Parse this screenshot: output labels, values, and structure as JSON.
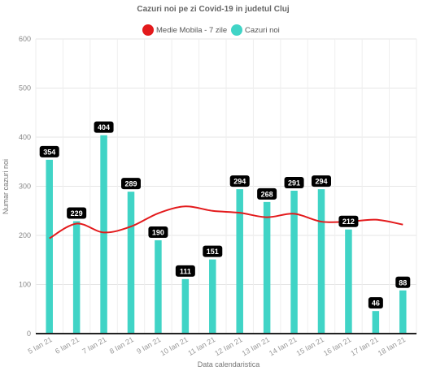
{
  "chart_data": {
    "type": "bar",
    "title": "Cazuri noi pe zi Covid-19 in judetul Cluj",
    "xlabel": "Data calendaristica",
    "ylabel": "Numar cazuri noi",
    "ylim": [
      0,
      600
    ],
    "yticks": [
      "0",
      "100",
      "200",
      "300",
      "400",
      "500",
      "600"
    ],
    "grid": true,
    "legend_position": "top-center",
    "categories": [
      "5 Ian 21",
      "6 Ian 21",
      "7 Ian 21",
      "8 Ian 21",
      "9 Ian 21",
      "10 Ian 21",
      "11 Ian 21",
      "12 Ian 21",
      "13 Ian 21",
      "14 Ian 21",
      "15 Ian 21",
      "16 Ian 21",
      "17 Ian 21",
      "18 Ian 21"
    ],
    "series": [
      {
        "name": "Medie Mobila - 7 zile",
        "type": "line",
        "color": "#e31a1c",
        "values": [
          194,
          224,
          206,
          218,
          245,
          259,
          250,
          246,
          237,
          244,
          228,
          228,
          232,
          222
        ]
      },
      {
        "name": "Cazuri noi",
        "type": "bar",
        "color": "#40d4c6",
        "values": [
          354,
          229,
          404,
          289,
          190,
          111,
          151,
          294,
          268,
          291,
          294,
          212,
          46,
          88
        ],
        "labels": [
          "354",
          "229",
          "404",
          "289",
          "190",
          "111",
          "151",
          "294",
          "268",
          "291",
          "294",
          "212",
          "46",
          "88"
        ]
      }
    ]
  }
}
